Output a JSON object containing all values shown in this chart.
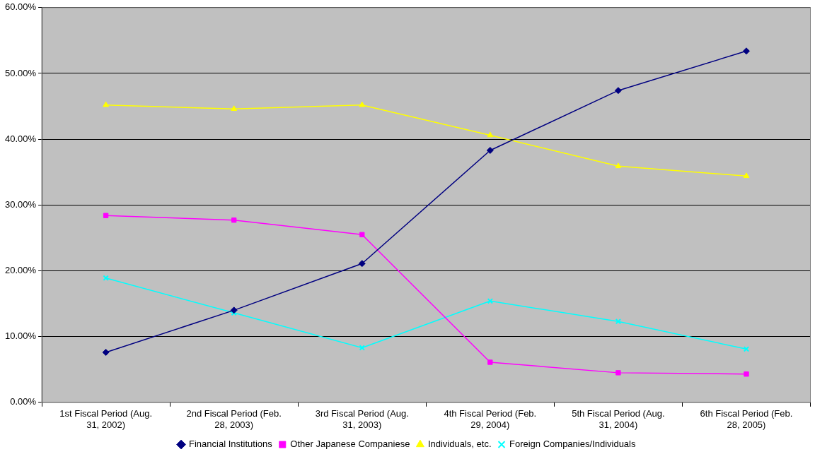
{
  "chart_data": {
    "type": "line",
    "categories": [
      "1st Fiscal Period (Aug. 31, 2002)",
      "2nd Fiscal Period (Feb. 28, 2003)",
      "3rd Fiscal Period (Aug. 31, 2003)",
      "4th Fiscal Period (Feb. 29, 2004)",
      "5th Fiscal Period (Aug. 31, 2004)",
      "6th Fiscal Period (Feb. 28, 2005)"
    ],
    "series": [
      {
        "name": "Financial Institutions",
        "color": "#000080",
        "marker": "diamond",
        "values": [
          7.6,
          14.0,
          21.1,
          38.3,
          47.4,
          53.4
        ]
      },
      {
        "name": "Other Japanese Companiese",
        "color": "#ff00ff",
        "marker": "square",
        "values": [
          28.4,
          27.7,
          25.5,
          6.1,
          4.5,
          4.3
        ]
      },
      {
        "name": "Individuals, etc.",
        "color": "#ffff00",
        "marker": "triangle",
        "values": [
          45.2,
          44.6,
          45.2,
          40.6,
          35.9,
          34.4
        ]
      },
      {
        "name": "Foreign Companies/Individuals",
        "color": "#00ffff",
        "marker": "cross",
        "values": [
          18.9,
          13.6,
          8.3,
          15.4,
          12.3,
          8.1
        ]
      }
    ],
    "ylim": [
      0,
      60
    ],
    "yticks": [
      {
        "value": 0,
        "label": "0.00%"
      },
      {
        "value": 10,
        "label": "10.00%"
      },
      {
        "value": 20,
        "label": "20.00%"
      },
      {
        "value": 30,
        "label": "30.00%"
      },
      {
        "value": 40,
        "label": "40.00%"
      },
      {
        "value": 50,
        "label": "50.00%"
      },
      {
        "value": 60,
        "label": "60.00%"
      }
    ],
    "grid": "y",
    "legend": "bottom",
    "line_style": "solid"
  }
}
